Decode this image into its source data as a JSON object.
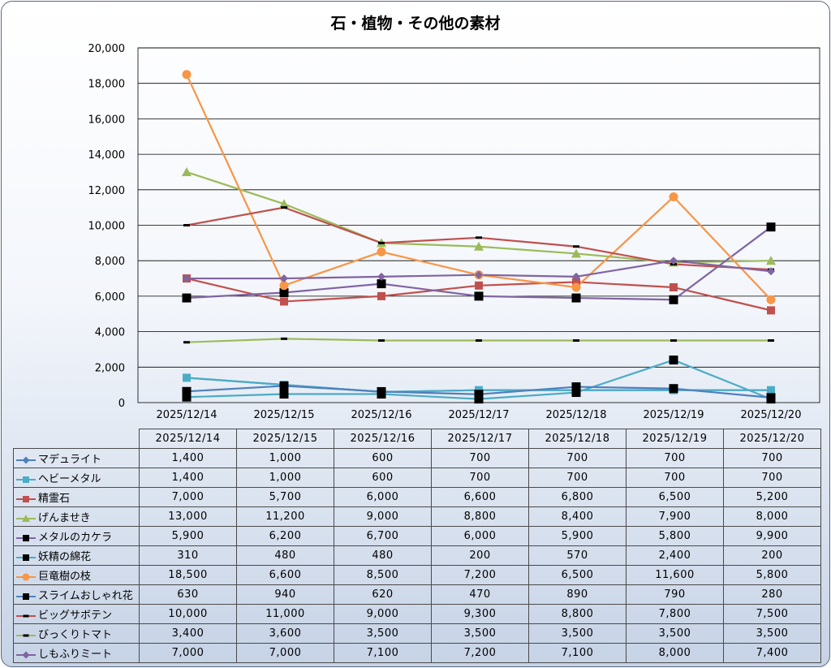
{
  "chart_data": {
    "type": "line",
    "title": "石・植物・その他の素材",
    "categories": [
      "2025/12/14",
      "2025/12/15",
      "2025/12/16",
      "2025/12/17",
      "2025/12/18",
      "2025/12/19",
      "2025/12/20"
    ],
    "ylim": [
      0,
      20000
    ],
    "yticks": [
      "0",
      "2,000",
      "4,000",
      "6,000",
      "8,000",
      "10,000",
      "12,000",
      "14,000",
      "16,000",
      "18,000",
      "20,000"
    ],
    "grid": true,
    "legend": "data-table",
    "series": [
      {
        "name": "マデュライト",
        "color": "#4f81bd",
        "marker": "diamond",
        "values": [
          1400,
          1000,
          600,
          700,
          700,
          700,
          700
        ],
        "labels": [
          "1,400",
          "1,000",
          "600",
          "700",
          "700",
          "700",
          "700"
        ]
      },
      {
        "name": "ヘビーメタル",
        "color": "#4bacc6",
        "marker": "square",
        "values": [
          1400,
          1000,
          600,
          700,
          700,
          700,
          700
        ],
        "labels": [
          "1,400",
          "1,000",
          "600",
          "700",
          "700",
          "700",
          "700"
        ]
      },
      {
        "name": "精霊石",
        "color": "#c0504d",
        "marker": "square",
        "values": [
          7000,
          5700,
          6000,
          6600,
          6800,
          6500,
          5200
        ],
        "labels": [
          "7,000",
          "5,700",
          "6,000",
          "6,600",
          "6,800",
          "6,500",
          "5,200"
        ]
      },
      {
        "name": "げんませき",
        "color": "#9bbb59",
        "marker": "triangle",
        "values": [
          13000,
          11200,
          9000,
          8800,
          8400,
          7900,
          8000
        ],
        "labels": [
          "13,000",
          "11,200",
          "9,000",
          "8,800",
          "8,400",
          "7,900",
          "8,000"
        ]
      },
      {
        "name": "メタルのカケラ",
        "color": "#8064a2",
        "marker": "bigsquare",
        "values": [
          5900,
          6200,
          6700,
          6000,
          5900,
          5800,
          9900
        ],
        "labels": [
          "5,900",
          "6,200",
          "6,700",
          "6,000",
          "5,900",
          "5,800",
          "9,900"
        ]
      },
      {
        "name": "妖精の綿花",
        "color": "#4bacc6",
        "marker": "bigsquare",
        "values": [
          310,
          480,
          480,
          200,
          570,
          2400,
          200
        ],
        "labels": [
          "310",
          "480",
          "480",
          "200",
          "570",
          "2,400",
          "200"
        ]
      },
      {
        "name": "巨竜樹の枝",
        "color": "#f79646",
        "marker": "circle",
        "values": [
          18500,
          6600,
          8500,
          7200,
          6500,
          11600,
          5800
        ],
        "labels": [
          "18,500",
          "6,600",
          "8,500",
          "7,200",
          "6,500",
          "11,600",
          "5,800"
        ]
      },
      {
        "name": "スライムおしゃれ花",
        "color": "#4f81bd",
        "marker": "bigsquare",
        "values": [
          630,
          940,
          620,
          470,
          890,
          790,
          280
        ],
        "labels": [
          "630",
          "940",
          "620",
          "470",
          "890",
          "790",
          "280"
        ]
      },
      {
        "name": "ビッグサボテン",
        "color": "#c0504d",
        "marker": "dash",
        "values": [
          10000,
          11000,
          9000,
          9300,
          8800,
          7800,
          7500
        ],
        "labels": [
          "10,000",
          "11,000",
          "9,000",
          "9,300",
          "8,800",
          "7,800",
          "7,500"
        ]
      },
      {
        "name": "びっくりトマト",
        "color": "#9bbb59",
        "marker": "dash",
        "values": [
          3400,
          3600,
          3500,
          3500,
          3500,
          3500,
          3500
        ],
        "labels": [
          "3,400",
          "3,600",
          "3,500",
          "3,500",
          "3,500",
          "3,500",
          "3,500"
        ]
      },
      {
        "name": "しもふりミート",
        "color": "#8064a2",
        "marker": "diamond",
        "values": [
          7000,
          7000,
          7100,
          7200,
          7100,
          8000,
          7400
        ],
        "labels": [
          "7,000",
          "7,000",
          "7,100",
          "7,200",
          "7,100",
          "8,000",
          "7,400"
        ]
      }
    ]
  }
}
